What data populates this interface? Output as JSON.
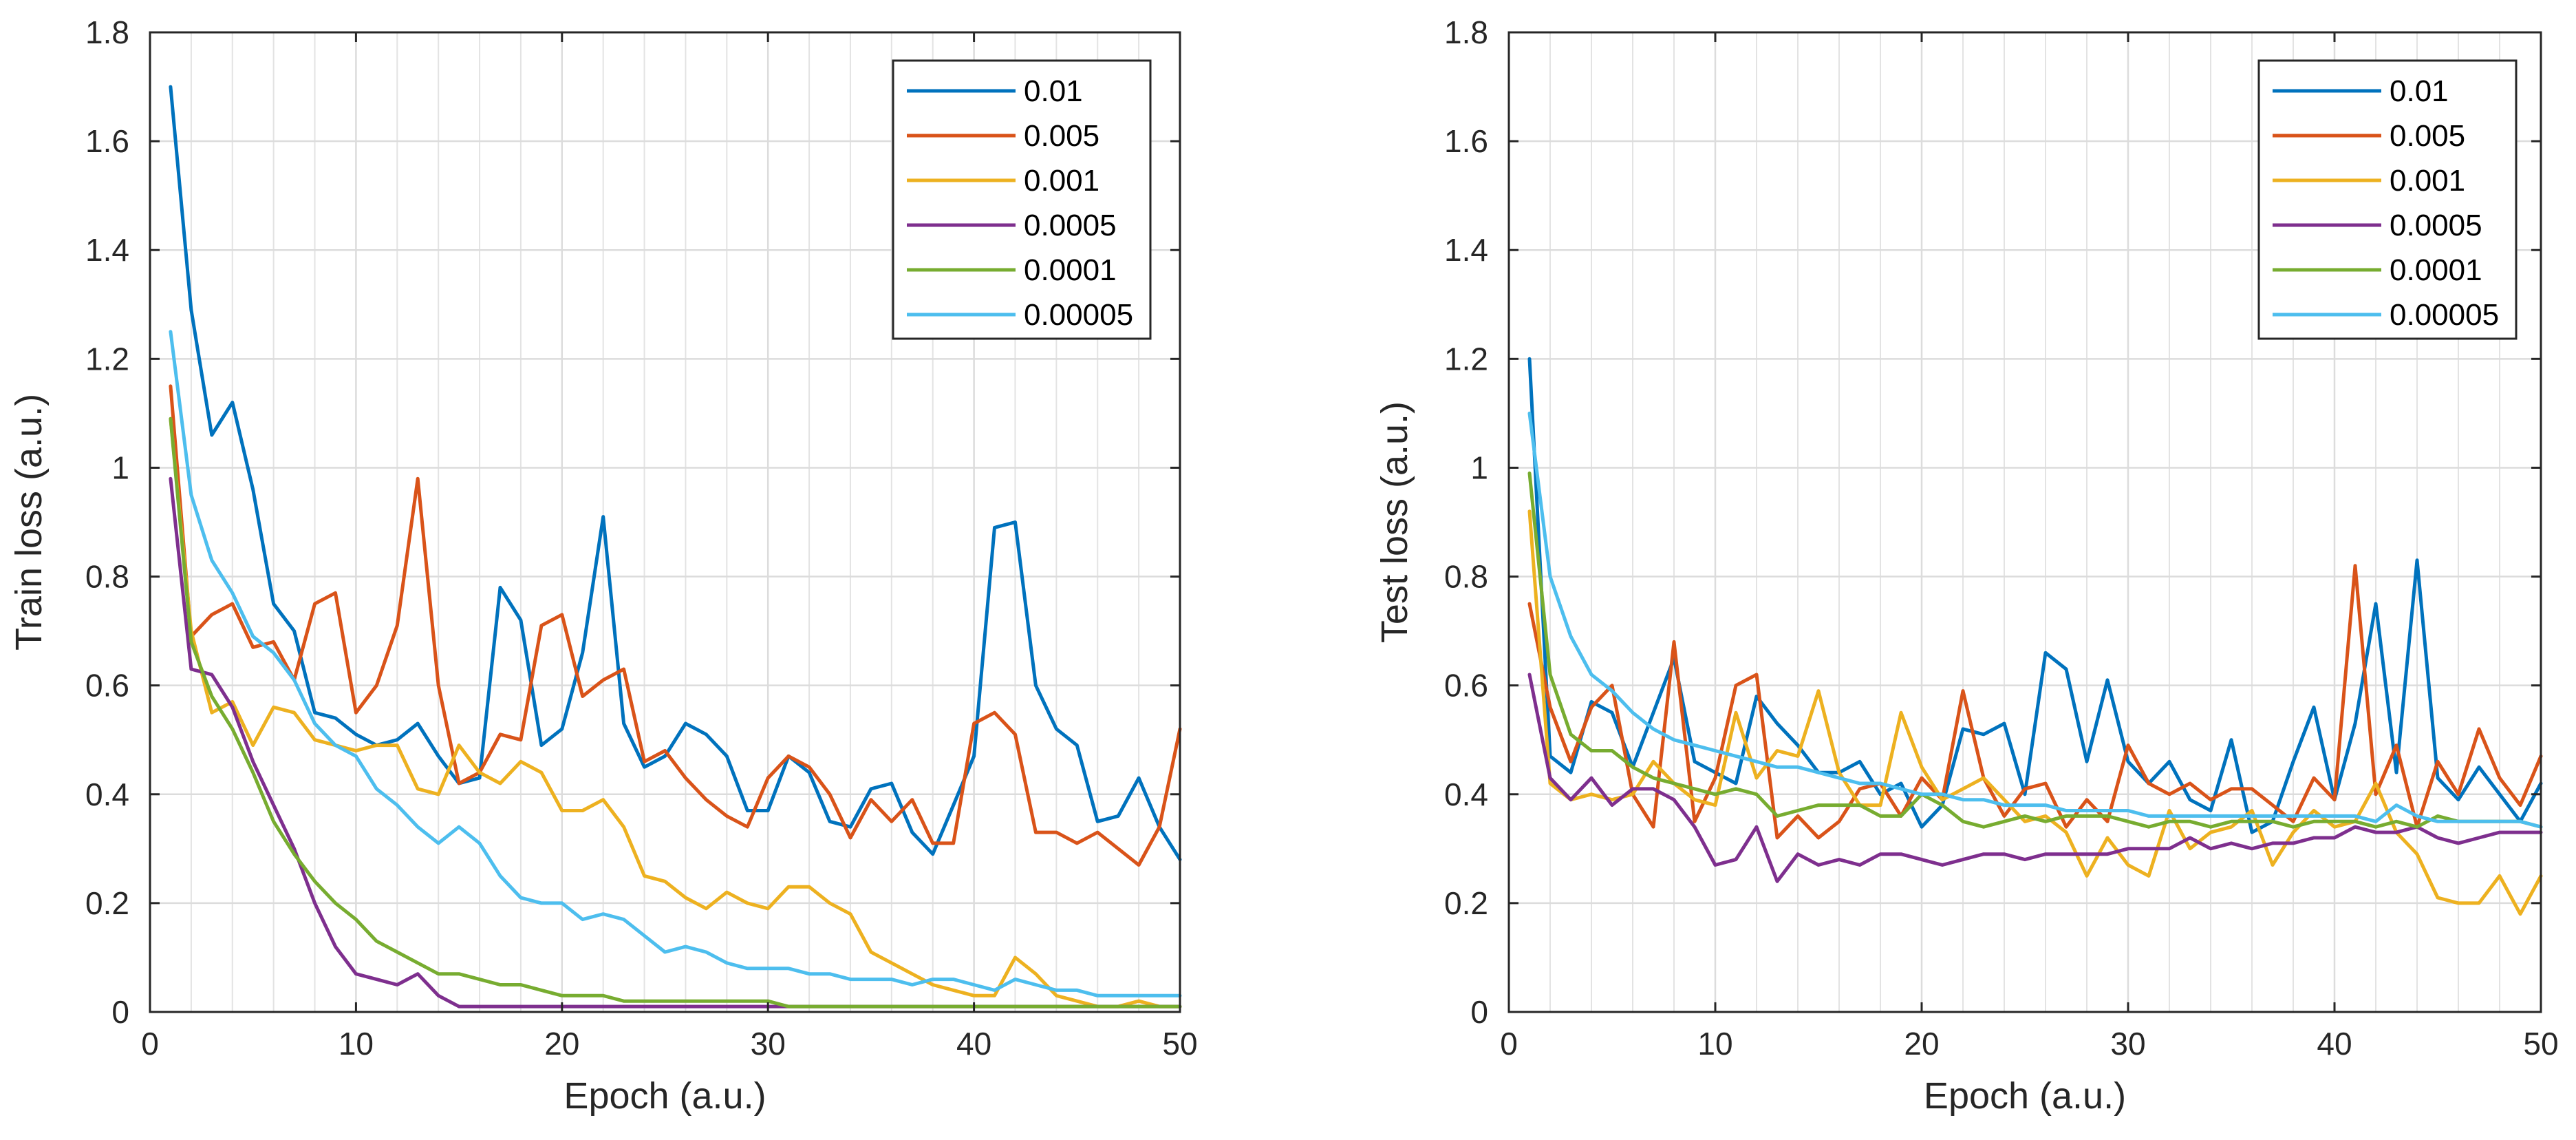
{
  "chart_data": [
    {
      "type": "line",
      "title": "",
      "xlabel": "Epoch (a.u.)",
      "ylabel": "Train loss (a.u.)",
      "xlim": [
        0,
        50
      ],
      "ylim": [
        0,
        1.8
      ],
      "x_ticks": [
        0,
        10,
        20,
        30,
        40,
        50
      ],
      "y_ticks": [
        0,
        0.2,
        0.4,
        0.6,
        0.8,
        1,
        1.2,
        1.4,
        1.6,
        1.8
      ],
      "x_tick_labels": [
        "0",
        "10",
        "20",
        "30",
        "40",
        "50"
      ],
      "y_tick_labels": [
        "0",
        "0.2",
        "0.4",
        "0.6",
        "0.8",
        "1",
        "1.2",
        "1.4",
        "1.6",
        "1.8"
      ],
      "grid": true,
      "legend_position": "top-right",
      "x": [
        1,
        2,
        3,
        4,
        5,
        6,
        7,
        8,
        9,
        10,
        11,
        12,
        13,
        14,
        15,
        16,
        17,
        18,
        19,
        20,
        21,
        22,
        23,
        24,
        25,
        26,
        27,
        28,
        29,
        30,
        31,
        32,
        33,
        34,
        35,
        36,
        37,
        38,
        39,
        40,
        41,
        42,
        43,
        44,
        45,
        46,
        47,
        48,
        49,
        50
      ],
      "series": [
        {
          "name": "0.01",
          "color": "#0072BD",
          "values": [
            1.7,
            1.29,
            1.06,
            1.12,
            0.96,
            0.75,
            0.7,
            0.55,
            0.54,
            0.51,
            0.49,
            0.5,
            0.53,
            0.47,
            0.42,
            0.43,
            0.78,
            0.72,
            0.49,
            0.52,
            0.66,
            0.91,
            0.53,
            0.45,
            0.47,
            0.53,
            0.51,
            0.47,
            0.37,
            0.37,
            0.47,
            0.44,
            0.35,
            0.34,
            0.41,
            0.42,
            0.33,
            0.29,
            0.38,
            0.47,
            0.89,
            0.9,
            0.6,
            0.52,
            0.49,
            0.35,
            0.36,
            0.43,
            0.34,
            0.28
          ]
        },
        {
          "name": "0.005",
          "color": "#D95319",
          "values": [
            1.15,
            0.69,
            0.73,
            0.75,
            0.67,
            0.68,
            0.61,
            0.75,
            0.77,
            0.55,
            0.6,
            0.71,
            0.98,
            0.6,
            0.42,
            0.44,
            0.51,
            0.5,
            0.71,
            0.73,
            0.58,
            0.61,
            0.63,
            0.46,
            0.48,
            0.43,
            0.39,
            0.36,
            0.34,
            0.43,
            0.47,
            0.45,
            0.4,
            0.32,
            0.39,
            0.35,
            0.39,
            0.31,
            0.31,
            0.53,
            0.55,
            0.51,
            0.33,
            0.33,
            0.31,
            0.33,
            0.3,
            0.27,
            0.34,
            0.52
          ]
        },
        {
          "name": "0.001",
          "color": "#EDB120",
          "values": [
            1.09,
            0.7,
            0.55,
            0.57,
            0.49,
            0.56,
            0.55,
            0.5,
            0.49,
            0.48,
            0.49,
            0.49,
            0.41,
            0.4,
            0.49,
            0.44,
            0.42,
            0.46,
            0.44,
            0.37,
            0.37,
            0.39,
            0.34,
            0.25,
            0.24,
            0.21,
            0.19,
            0.22,
            0.2,
            0.19,
            0.23,
            0.23,
            0.2,
            0.18,
            0.11,
            0.09,
            0.07,
            0.05,
            0.04,
            0.03,
            0.03,
            0.1,
            0.07,
            0.03,
            0.02,
            0.01,
            0.01,
            0.02,
            0.01,
            0.01
          ]
        },
        {
          "name": "0.0005",
          "color": "#7E2F8E",
          "values": [
            0.98,
            0.63,
            0.62,
            0.56,
            0.46,
            0.38,
            0.3,
            0.2,
            0.12,
            0.07,
            0.06,
            0.05,
            0.07,
            0.03,
            0.01,
            0.01,
            0.01,
            0.01,
            0.01,
            0.01,
            0.01,
            0.01,
            0.01,
            0.01,
            0.01,
            0.01,
            0.01,
            0.01,
            0.01,
            0.01,
            0.01,
            0.01,
            0.01,
            0.01,
            0.01,
            0.01,
            0.01,
            0.01,
            0.01,
            0.01,
            0.01,
            0.01,
            0.01,
            0.01,
            0.01,
            0.01,
            0.01,
            0.01,
            0.01,
            0.01
          ]
        },
        {
          "name": "0.0001",
          "color": "#77AC30",
          "values": [
            1.09,
            0.68,
            0.58,
            0.52,
            0.44,
            0.35,
            0.29,
            0.24,
            0.2,
            0.17,
            0.13,
            0.11,
            0.09,
            0.07,
            0.07,
            0.06,
            0.05,
            0.05,
            0.04,
            0.03,
            0.03,
            0.03,
            0.02,
            0.02,
            0.02,
            0.02,
            0.02,
            0.02,
            0.02,
            0.02,
            0.01,
            0.01,
            0.01,
            0.01,
            0.01,
            0.01,
            0.01,
            0.01,
            0.01,
            0.01,
            0.01,
            0.01,
            0.01,
            0.01,
            0.01,
            0.01,
            0.01,
            0.01,
            0.01,
            0.01
          ]
        },
        {
          "name": "0.00005",
          "color": "#4DBEEE",
          "values": [
            1.25,
            0.95,
            0.83,
            0.77,
            0.69,
            0.66,
            0.61,
            0.53,
            0.49,
            0.47,
            0.41,
            0.38,
            0.34,
            0.31,
            0.34,
            0.31,
            0.25,
            0.21,
            0.2,
            0.2,
            0.17,
            0.18,
            0.17,
            0.14,
            0.11,
            0.12,
            0.11,
            0.09,
            0.08,
            0.08,
            0.08,
            0.07,
            0.07,
            0.06,
            0.06,
            0.06,
            0.05,
            0.06,
            0.06,
            0.05,
            0.04,
            0.06,
            0.05,
            0.04,
            0.04,
            0.03,
            0.03,
            0.03,
            0.03,
            0.03
          ]
        }
      ]
    },
    {
      "type": "line",
      "title": "",
      "xlabel": "Epoch (a.u.)",
      "ylabel": "Test loss (a.u.)",
      "xlim": [
        0,
        50
      ],
      "ylim": [
        0,
        1.8
      ],
      "x_ticks": [
        0,
        10,
        20,
        30,
        40,
        50
      ],
      "y_ticks": [
        0,
        0.2,
        0.4,
        0.6,
        0.8,
        1,
        1.2,
        1.4,
        1.6,
        1.8
      ],
      "x_tick_labels": [
        "0",
        "10",
        "20",
        "30",
        "40",
        "50"
      ],
      "y_tick_labels": [
        "0",
        "0.2",
        "0.4",
        "0.6",
        "0.8",
        "1",
        "1.2",
        "1.4",
        "1.6",
        "1.8"
      ],
      "grid": true,
      "legend_position": "top-right",
      "x": [
        1,
        2,
        3,
        4,
        5,
        6,
        7,
        8,
        9,
        10,
        11,
        12,
        13,
        14,
        15,
        16,
        17,
        18,
        19,
        20,
        21,
        22,
        23,
        24,
        25,
        26,
        27,
        28,
        29,
        30,
        31,
        32,
        33,
        34,
        35,
        36,
        37,
        38,
        39,
        40,
        41,
        42,
        43,
        44,
        45,
        46,
        47,
        48,
        49,
        50
      ],
      "series": [
        {
          "name": "0.01",
          "color": "#0072BD",
          "values": [
            1.2,
            0.47,
            0.44,
            0.57,
            0.55,
            0.45,
            0.55,
            0.65,
            0.46,
            0.44,
            0.42,
            0.58,
            0.53,
            0.49,
            0.44,
            0.44,
            0.46,
            0.4,
            0.42,
            0.34,
            0.38,
            0.52,
            0.51,
            0.53,
            0.4,
            0.66,
            0.63,
            0.46,
            0.61,
            0.46,
            0.42,
            0.46,
            0.39,
            0.37,
            0.5,
            0.33,
            0.35,
            0.46,
            0.56,
            0.39,
            0.53,
            0.75,
            0.44,
            0.83,
            0.43,
            0.39,
            0.45,
            0.4,
            0.35,
            0.42
          ]
        },
        {
          "name": "0.005",
          "color": "#D95319",
          "values": [
            0.75,
            0.56,
            0.46,
            0.56,
            0.6,
            0.4,
            0.34,
            0.68,
            0.35,
            0.43,
            0.6,
            0.62,
            0.32,
            0.36,
            0.32,
            0.35,
            0.41,
            0.42,
            0.36,
            0.43,
            0.39,
            0.59,
            0.43,
            0.36,
            0.41,
            0.42,
            0.34,
            0.39,
            0.35,
            0.49,
            0.42,
            0.4,
            0.42,
            0.39,
            0.41,
            0.41,
            0.38,
            0.35,
            0.43,
            0.39,
            0.82,
            0.4,
            0.49,
            0.34,
            0.46,
            0.4,
            0.52,
            0.43,
            0.38,
            0.47
          ]
        },
        {
          "name": "0.001",
          "color": "#EDB120",
          "values": [
            0.92,
            0.42,
            0.39,
            0.4,
            0.39,
            0.4,
            0.46,
            0.42,
            0.39,
            0.38,
            0.55,
            0.43,
            0.48,
            0.47,
            0.59,
            0.44,
            0.38,
            0.38,
            0.55,
            0.45,
            0.39,
            0.41,
            0.43,
            0.39,
            0.35,
            0.36,
            0.33,
            0.25,
            0.32,
            0.27,
            0.25,
            0.37,
            0.3,
            0.33,
            0.34,
            0.37,
            0.27,
            0.33,
            0.37,
            0.34,
            0.35,
            0.42,
            0.33,
            0.29,
            0.21,
            0.2,
            0.2,
            0.25,
            0.18,
            0.25
          ]
        },
        {
          "name": "0.0005",
          "color": "#7E2F8E",
          "values": [
            0.62,
            0.43,
            0.39,
            0.43,
            0.38,
            0.41,
            0.41,
            0.39,
            0.34,
            0.27,
            0.28,
            0.34,
            0.24,
            0.29,
            0.27,
            0.28,
            0.27,
            0.29,
            0.29,
            0.28,
            0.27,
            0.28,
            0.29,
            0.29,
            0.28,
            0.29,
            0.29,
            0.29,
            0.29,
            0.3,
            0.3,
            0.3,
            0.32,
            0.3,
            0.31,
            0.3,
            0.31,
            0.31,
            0.32,
            0.32,
            0.34,
            0.33,
            0.33,
            0.34,
            0.32,
            0.31,
            0.32,
            0.33,
            0.33,
            0.33
          ]
        },
        {
          "name": "0.0001",
          "color": "#77AC30",
          "values": [
            0.99,
            0.62,
            0.51,
            0.48,
            0.48,
            0.45,
            0.43,
            0.42,
            0.41,
            0.4,
            0.41,
            0.4,
            0.36,
            0.37,
            0.38,
            0.38,
            0.38,
            0.36,
            0.36,
            0.4,
            0.38,
            0.35,
            0.34,
            0.35,
            0.36,
            0.35,
            0.36,
            0.36,
            0.36,
            0.35,
            0.34,
            0.35,
            0.35,
            0.34,
            0.35,
            0.35,
            0.35,
            0.34,
            0.35,
            0.35,
            0.35,
            0.34,
            0.35,
            0.34,
            0.36,
            0.35,
            0.35,
            0.35,
            0.35,
            0.34
          ]
        },
        {
          "name": "0.00005",
          "color": "#4DBEEE",
          "values": [
            1.1,
            0.8,
            0.69,
            0.62,
            0.59,
            0.55,
            0.52,
            0.5,
            0.49,
            0.48,
            0.47,
            0.46,
            0.45,
            0.45,
            0.44,
            0.43,
            0.42,
            0.42,
            0.41,
            0.4,
            0.4,
            0.39,
            0.39,
            0.38,
            0.38,
            0.38,
            0.37,
            0.37,
            0.37,
            0.37,
            0.36,
            0.36,
            0.36,
            0.36,
            0.36,
            0.36,
            0.36,
            0.36,
            0.36,
            0.36,
            0.36,
            0.35,
            0.38,
            0.36,
            0.35,
            0.35,
            0.35,
            0.35,
            0.35,
            0.34
          ]
        }
      ]
    }
  ]
}
